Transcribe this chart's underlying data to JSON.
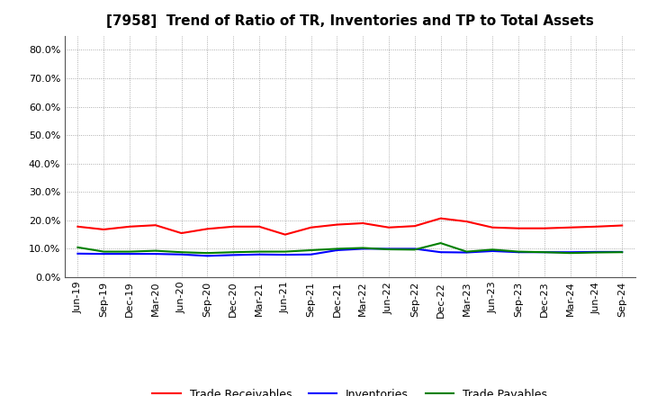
{
  "title": "[7958]  Trend of Ratio of TR, Inventories and TP to Total Assets",
  "x_labels": [
    "Jun-19",
    "Sep-19",
    "Dec-19",
    "Mar-20",
    "Jun-20",
    "Sep-20",
    "Dec-20",
    "Mar-21",
    "Jun-21",
    "Sep-21",
    "Dec-21",
    "Mar-22",
    "Jun-22",
    "Sep-22",
    "Dec-22",
    "Mar-23",
    "Jun-23",
    "Sep-23",
    "Dec-23",
    "Mar-24",
    "Jun-24",
    "Sep-24"
  ],
  "trade_receivables": [
    0.178,
    0.168,
    0.178,
    0.183,
    0.155,
    0.17,
    0.178,
    0.178,
    0.15,
    0.175,
    0.185,
    0.19,
    0.175,
    0.18,
    0.207,
    0.196,
    0.175,
    0.172,
    0.172,
    0.175,
    0.178,
    0.182
  ],
  "inventories": [
    0.083,
    0.082,
    0.082,
    0.082,
    0.08,
    0.075,
    0.078,
    0.08,
    0.079,
    0.08,
    0.095,
    0.1,
    0.1,
    0.1,
    0.088,
    0.087,
    0.092,
    0.088,
    0.088,
    0.088,
    0.089,
    0.089
  ],
  "trade_payables": [
    0.105,
    0.09,
    0.09,
    0.093,
    0.088,
    0.085,
    0.088,
    0.09,
    0.09,
    0.095,
    0.1,
    0.103,
    0.098,
    0.097,
    0.12,
    0.09,
    0.097,
    0.09,
    0.088,
    0.085,
    0.087,
    0.088
  ],
  "tr_color": "#ff0000",
  "inv_color": "#0000ff",
  "tp_color": "#008000",
  "ylim": [
    0.0,
    0.85
  ],
  "yticks": [
    0.0,
    0.1,
    0.2,
    0.3,
    0.4,
    0.5,
    0.6,
    0.7,
    0.8
  ],
  "legend_labels": [
    "Trade Receivables",
    "Inventories",
    "Trade Payables"
  ],
  "bg_color": "#ffffff",
  "grid_color": "#999999",
  "title_fontsize": 11,
  "tick_fontsize": 8,
  "legend_fontsize": 9,
  "line_width": 1.5
}
